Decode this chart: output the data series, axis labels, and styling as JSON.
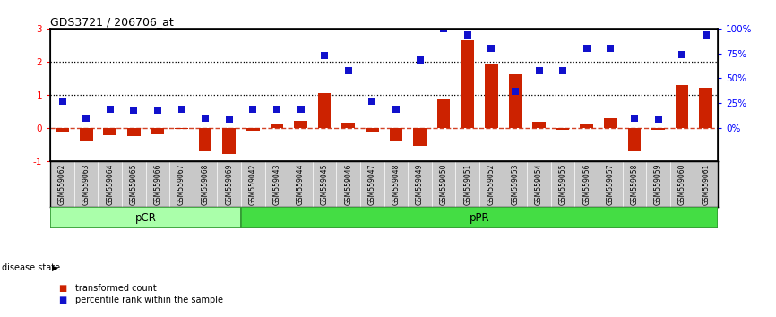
{
  "title": "GDS3721 / 206706_at",
  "samples": [
    "GSM559062",
    "GSM559063",
    "GSM559064",
    "GSM559065",
    "GSM559066",
    "GSM559067",
    "GSM559068",
    "GSM559069",
    "GSM559042",
    "GSM559043",
    "GSM559044",
    "GSM559045",
    "GSM559046",
    "GSM559047",
    "GSM559048",
    "GSM559049",
    "GSM559050",
    "GSM559051",
    "GSM559052",
    "GSM559053",
    "GSM559054",
    "GSM559055",
    "GSM559056",
    "GSM559057",
    "GSM559058",
    "GSM559059",
    "GSM559060",
    "GSM559061"
  ],
  "transformed_count": [
    -0.12,
    -0.42,
    -0.22,
    -0.25,
    -0.2,
    -0.04,
    -0.72,
    -0.8,
    -0.1,
    0.1,
    0.2,
    1.05,
    0.15,
    -0.12,
    -0.4,
    -0.55,
    0.88,
    2.65,
    1.95,
    1.62,
    0.18,
    -0.07,
    0.1,
    0.3,
    -0.72,
    -0.07,
    1.28,
    1.22
  ],
  "percentile_rank_pct": [
    27,
    10,
    19,
    18,
    18,
    19,
    10,
    9,
    19,
    19,
    19,
    73,
    57,
    27,
    19,
    68,
    100,
    94,
    80,
    37,
    57,
    57,
    80,
    80,
    10,
    9,
    74,
    94
  ],
  "pCR_count": 8,
  "pPR_count": 20,
  "ylim": [
    -1.0,
    3.0
  ],
  "yticks_left": [
    -1,
    0,
    1,
    2,
    3
  ],
  "right_ytick_pct": [
    0,
    25,
    50,
    75,
    100
  ],
  "bar_color": "#cc2200",
  "dot_color": "#1111cc",
  "pCR_facecolor": "#aaffaa",
  "pPR_facecolor": "#44dd44",
  "group_edgecolor": "#339933",
  "tick_bg_color": "#c8c8c8",
  "bar_width": 0.55,
  "dot_size": 28,
  "figsize": [
    8.66,
    3.54
  ],
  "dpi": 100
}
